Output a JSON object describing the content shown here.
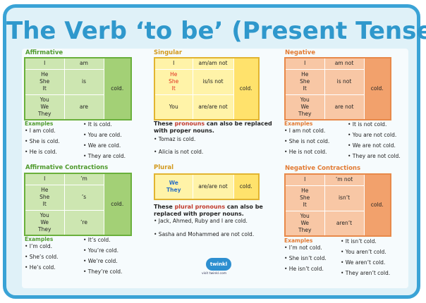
{
  "title": "The Verb ‘to be’ (Present Tense)",
  "affirmative": {
    "heading": "Affirmative",
    "rows": [
      [
        "I",
        "am"
      ],
      [
        "He\nShe\nIt",
        "is"
      ],
      [
        "You\nWe\nThey",
        "are"
      ]
    ],
    "adj": "cold.",
    "examples_title": "Examples",
    "examples_left": [
      "• I am cold.",
      "• She is cold.",
      "• He is cold."
    ],
    "examples_right": [
      "• It is cold.",
      "• You are cold.",
      "• We are cold.",
      "• They are cold."
    ]
  },
  "affirmative_contractions": {
    "heading": "Affirmative Contractions",
    "rows": [
      [
        "I",
        "’m"
      ],
      [
        "He\nShe\nIt",
        "’s"
      ],
      [
        "You\nWe\nThey",
        "’re"
      ]
    ],
    "adj": "cold.",
    "examples_title": "Examples",
    "examples_left": [
      "• I’m cold.",
      "• She’s cold.",
      "• He’s cold."
    ],
    "examples_right": [
      "• It’s cold.",
      "• You’re cold.",
      "• We’re cold.",
      "• They’re cold."
    ]
  },
  "singular": {
    "heading": "Singular",
    "rows": [
      [
        "I",
        "am/am not"
      ],
      [
        "He\nShe\nIt",
        "is/is not"
      ],
      [
        "You",
        "are/are not"
      ]
    ],
    "adj": "cold.",
    "note_a": "These ",
    "note_kw": "pronouns",
    "note_b": " can also be replaced with proper nouns.",
    "examples": [
      "• Tomaz is cold.",
      "• Alicia is not cold."
    ]
  },
  "plural": {
    "heading": "Plural",
    "pronouns": "We\nThey",
    "verb": "are/are not",
    "adj": "cold.",
    "note_a": "These ",
    "note_kw": "plural pronouns",
    "note_b": " can also be replaced with proper nouns.",
    "examples": [
      "• Jack, Ahmed, Ruby and I are cold.",
      "• Sasha and Mohammed are not cold."
    ]
  },
  "negative": {
    "heading": "Negative",
    "rows": [
      [
        "I",
        "am not"
      ],
      [
        "He\nShe\nIt",
        "is not"
      ],
      [
        "You\nWe\nThey",
        "are not"
      ]
    ],
    "adj": "cold.",
    "examples_title": "Examples",
    "examples_left": [
      "• I am not cold.",
      "• She is not cold.",
      "• He is not cold."
    ],
    "examples_right": [
      "• It is not cold.",
      "• You are not cold.",
      "• We are not cold.",
      "• They are not cold."
    ]
  },
  "negative_contractions": {
    "heading": "Negative Contractions",
    "rows": [
      [
        "I",
        "’m not"
      ],
      [
        "He\nShe\nIt",
        "isn’t"
      ],
      [
        "You\nWe\nThey",
        "aren’t"
      ]
    ],
    "adj": "cold.",
    "examples_title": "Examples",
    "examples_left": [
      "• I’m not cold.",
      "• She isn’t cold.",
      "• He isn’t cold."
    ],
    "examples_right": [
      "• It isn’t cold.",
      "• You aren’t cold.",
      "• We aren’t cold.",
      "• They aren’t cold."
    ]
  },
  "logo": {
    "text": "twinkl",
    "sub": "visit twinkl.com"
  }
}
